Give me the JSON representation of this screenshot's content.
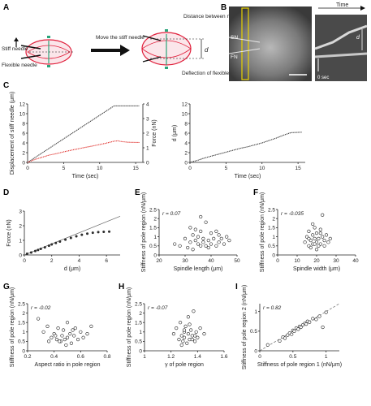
{
  "panels": {
    "A": "A",
    "B": "B",
    "C": "C",
    "D": "D",
    "E": "E",
    "F": "F",
    "G": "G",
    "H": "H",
    "I": "I"
  },
  "panel_a": {
    "stiff_needle": "Stiff needle",
    "flexible_needle": "Flexible needle",
    "move_label": "Move the stiff needle",
    "distance_label": "Distance between needles",
    "deflection_label": "Deflection of flexible needle",
    "d_symbol": "d"
  },
  "panel_b": {
    "sn": "SN",
    "fn": "FN",
    "time": "Time",
    "zero_sec": "0 sec",
    "d_symbol": "d"
  },
  "chart_data": [
    {
      "id": "C-left",
      "type": "line",
      "xlabel": "Time (sec)",
      "ylabel": "Displacement of stiff needle (μm)",
      "ylabel_right": "Force (nN)",
      "xlim": [
        0,
        16
      ],
      "ylim": [
        0,
        12
      ],
      "ylim_right": [
        0,
        4
      ],
      "xticks": [
        0,
        5,
        10,
        15
      ],
      "yticks": [
        0,
        2,
        4,
        6,
        8,
        10,
        12
      ],
      "yticks_right": [
        0,
        1,
        2,
        3,
        4
      ],
      "series": [
        {
          "color": "#333333",
          "x": [
            0,
            12,
            15.5
          ],
          "y": [
            0,
            11.6,
            11.6
          ]
        },
        {
          "color": "#e0302c",
          "axis": "right",
          "x": [
            0,
            1,
            2,
            3,
            4,
            5,
            6,
            7,
            8,
            9,
            10,
            11,
            12,
            12.5,
            13,
            14,
            15.5
          ],
          "y": [
            0,
            0.2,
            0.35,
            0.5,
            0.6,
            0.72,
            0.83,
            0.93,
            1.03,
            1.12,
            1.22,
            1.33,
            1.45,
            1.48,
            1.43,
            1.38,
            1.36
          ]
        }
      ]
    },
    {
      "id": "C-right",
      "type": "line",
      "xlabel": "Time (sec)",
      "ylabel": "d (μm)",
      "xlim": [
        0,
        16
      ],
      "ylim": [
        0,
        12
      ],
      "xticks": [
        0,
        5,
        10,
        15
      ],
      "yticks": [
        0,
        2,
        4,
        6,
        8,
        10,
        12
      ],
      "series": [
        {
          "color": "#333333",
          "x": [
            0,
            1,
            2,
            3,
            4,
            5,
            6,
            7,
            8,
            9,
            10,
            11,
            12,
            13,
            14,
            15.5
          ],
          "y": [
            0,
            0.4,
            0.9,
            1.3,
            1.7,
            2.1,
            2.5,
            2.9,
            3.2,
            3.6,
            4.0,
            4.5,
            5.0,
            5.6,
            6.1,
            6.2
          ]
        }
      ]
    },
    {
      "id": "D",
      "type": "scatter",
      "xlabel": "d (μm)",
      "ylabel": "Force (nN)",
      "xlim": [
        0,
        7
      ],
      "ylim": [
        0,
        3
      ],
      "xticks": [
        0,
        2,
        4,
        6
      ],
      "yticks": [
        0,
        1,
        2,
        3
      ],
      "points": {
        "x": [
          0.2,
          0.5,
          0.8,
          1.0,
          1.2,
          1.5,
          1.8,
          2.0,
          2.3,
          2.6,
          3.0,
          3.4,
          3.8,
          4.2,
          4.6,
          5.0,
          5.4,
          5.8,
          6.2
        ],
        "y": [
          0.08,
          0.17,
          0.27,
          0.34,
          0.42,
          0.52,
          0.63,
          0.72,
          0.82,
          0.92,
          1.05,
          1.17,
          1.28,
          1.38,
          1.46,
          1.52,
          1.56,
          1.58,
          1.6
        ]
      },
      "fit_line": {
        "x": [
          0,
          7
        ],
        "y": [
          0,
          2.65
        ]
      }
    },
    {
      "id": "E",
      "type": "scatter",
      "xlabel": "Spindle length (μm)",
      "ylabel": "Stiffness of pole region (nN/μm)",
      "annotation": "r = 0.07",
      "xlim": [
        20,
        50
      ],
      "ylim": [
        0,
        2.5
      ],
      "xticks": [
        20,
        30,
        40,
        50
      ],
      "yticks": [
        0,
        0.5,
        1.0,
        1.5,
        2.0,
        2.5
      ],
      "points": {
        "x": [
          26,
          28,
          30,
          31,
          32,
          33,
          33,
          34,
          34,
          35,
          35,
          36,
          36,
          37,
          37,
          38,
          38,
          39,
          40,
          40,
          41,
          42,
          42,
          43,
          44,
          45,
          46,
          47,
          32,
          36,
          39,
          43
        ],
        "y": [
          0.6,
          0.5,
          0.9,
          0.4,
          0.7,
          1.1,
          0.3,
          0.8,
          1.4,
          0.6,
          1.0,
          0.5,
          1.3,
          0.9,
          0.7,
          1.8,
          0.5,
          0.8,
          1.2,
          0.6,
          0.9,
          0.5,
          1.3,
          0.7,
          0.9,
          0.6,
          1.0,
          0.8,
          1.5,
          2.1,
          0.4,
          1.1
        ]
      }
    },
    {
      "id": "F",
      "type": "scatter",
      "xlabel": "Spindle width (μm)",
      "ylabel": "Stiffness of pole region (nN/μm)",
      "annotation": "r = -0.035",
      "xlim": [
        0,
        40
      ],
      "ylim": [
        0,
        2.5
      ],
      "xticks": [
        0,
        10,
        20,
        30,
        40
      ],
      "yticks": [
        0,
        0.5,
        1.0,
        1.5,
        2.0,
        2.5
      ],
      "points": {
        "x": [
          14,
          15,
          16,
          16,
          17,
          17,
          18,
          18,
          19,
          19,
          20,
          20,
          21,
          21,
          22,
          22,
          23,
          23,
          24,
          25,
          26,
          27,
          18,
          20,
          22,
          24,
          16,
          19
        ],
        "y": [
          0.7,
          1.0,
          0.5,
          1.3,
          0.8,
          0.4,
          1.1,
          0.6,
          0.9,
          1.5,
          0.7,
          1.2,
          0.5,
          0.9,
          1.4,
          0.6,
          1.0,
          2.2,
          0.8,
          1.1,
          0.7,
          0.9,
          1.7,
          0.3,
          1.2,
          0.5,
          0.9,
          0.6
        ]
      }
    },
    {
      "id": "G",
      "type": "scatter",
      "xlabel": "Aspect ratio in pole region",
      "ylabel": "Stiffness of pole region (nN/μm)",
      "annotation": "r = -0.02",
      "xlim": [
        0.2,
        0.8
      ],
      "ylim": [
        0,
        2.5
      ],
      "xticks": [
        0.2,
        0.4,
        0.6,
        0.8
      ],
      "yticks": [
        0,
        0.5,
        1.0,
        1.5,
        2.0,
        2.5
      ],
      "points": {
        "x": [
          0.28,
          0.32,
          0.35,
          0.38,
          0.4,
          0.42,
          0.43,
          0.45,
          0.46,
          0.47,
          0.48,
          0.5,
          0.5,
          0.52,
          0.53,
          0.55,
          0.56,
          0.58,
          0.6,
          0.62,
          0.65,
          0.68,
          0.44,
          0.49,
          0.54,
          0.41,
          0.36
        ],
        "y": [
          1.7,
          1.0,
          1.3,
          0.7,
          0.9,
          0.6,
          1.2,
          0.5,
          0.8,
          1.1,
          0.6,
          0.7,
          1.5,
          0.9,
          0.4,
          0.8,
          1.2,
          0.6,
          1.0,
          0.7,
          0.9,
          1.3,
          0.5,
          0.3,
          1.1,
          0.8,
          0.5
        ]
      }
    },
    {
      "id": "H",
      "type": "scatter",
      "xlabel": "γ of pole region",
      "ylabel": "Stiffness of pole region (nN/μm)",
      "annotation": "r = -0.07",
      "xlim": [
        1.0,
        1.6
      ],
      "ylim": [
        0,
        2.5
      ],
      "xticks": [
        1.0,
        1.2,
        1.4,
        1.6
      ],
      "yticks": [
        0,
        0.5,
        1.0,
        1.5,
        2.0,
        2.5
      ],
      "points": {
        "x": [
          1.22,
          1.24,
          1.26,
          1.27,
          1.28,
          1.29,
          1.3,
          1.3,
          1.31,
          1.32,
          1.33,
          1.33,
          1.34,
          1.35,
          1.36,
          1.37,
          1.38,
          1.39,
          1.4,
          1.42,
          1.45,
          1.28,
          1.34,
          1.36,
          1.3,
          1.38
        ],
        "y": [
          0.9,
          1.2,
          0.6,
          1.5,
          0.8,
          0.5,
          1.0,
          0.7,
          1.3,
          0.4,
          0.9,
          1.8,
          0.6,
          1.1,
          0.8,
          2.1,
          0.5,
          1.0,
          0.7,
          1.2,
          0.9,
          0.3,
          1.4,
          0.6,
          1.1,
          0.8
        ]
      }
    },
    {
      "id": "I",
      "type": "scatter",
      "xlabel": "Stiffness of pole region 1 (nN/μm)",
      "ylabel": "Stiffness of pole region 2 (nN/μm)",
      "annotation": "r = 0.82",
      "xlim": [
        0,
        1.2
      ],
      "ylim": [
        0,
        1.2
      ],
      "xticks": [
        0,
        0.5,
        1.0
      ],
      "yticks": [
        0,
        0.5,
        1.0
      ],
      "points": {
        "x": [
          0.12,
          0.3,
          0.35,
          0.38,
          0.42,
          0.45,
          0.48,
          0.5,
          0.52,
          0.55,
          0.58,
          0.6,
          0.62,
          0.65,
          0.68,
          0.7,
          0.72,
          0.75,
          0.8,
          0.85,
          0.9,
          0.95,
          1.0
        ],
        "y": [
          0.15,
          0.25,
          0.35,
          0.32,
          0.4,
          0.45,
          0.42,
          0.52,
          0.5,
          0.58,
          0.55,
          0.62,
          0.6,
          0.66,
          0.7,
          0.68,
          0.75,
          0.73,
          0.82,
          0.8,
          0.88,
          0.6,
          0.98
        ]
      },
      "fit_line": {
        "x": [
          0,
          1.2
        ],
        "y": [
          0,
          1.2
        ]
      }
    }
  ]
}
